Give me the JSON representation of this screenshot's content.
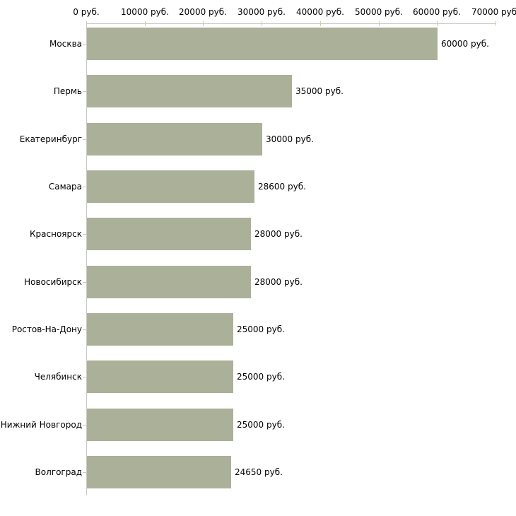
{
  "chart_data": {
    "type": "bar",
    "orientation": "horizontal",
    "title": "",
    "xlabel": "",
    "ylabel": "",
    "categories": [
      "Москва",
      "Пермь",
      "Екатеринбург",
      "Самара",
      "Красноярск",
      "Новосибирск",
      "Ростов-На-Дону",
      "Челябинск",
      "Нижний Новгород",
      "Волгоград"
    ],
    "values": [
      60000,
      35000,
      30000,
      28600,
      28000,
      28000,
      25000,
      25000,
      25000,
      24650
    ],
    "value_labels": [
      "60000 руб.",
      "35000 руб.",
      "30000 руб.",
      "28600 руб.",
      "28000 руб.",
      "28000 руб.",
      "25000 руб.",
      "25000 руб.",
      "25000 руб.",
      "24650 руб."
    ],
    "x_axis": {
      "position": "top",
      "min": 0,
      "max": 70000,
      "tick_step": 10000,
      "tick_values": [
        0,
        10000,
        20000,
        30000,
        40000,
        50000,
        60000,
        70000
      ],
      "tick_labels": [
        "0 руб.",
        "10000 руб.",
        "20000 руб.",
        "30000 руб.",
        "40000 руб.",
        "50000 руб.",
        "60000 руб.",
        "70000 руб."
      ]
    },
    "grid": false,
    "legend": "none",
    "colors": {
      "bar_fill": "#abb199",
      "axis_line": "#c9c9c9",
      "tick_mark": "#ccd09e",
      "text": "#000000",
      "background": "#ffffff"
    }
  }
}
